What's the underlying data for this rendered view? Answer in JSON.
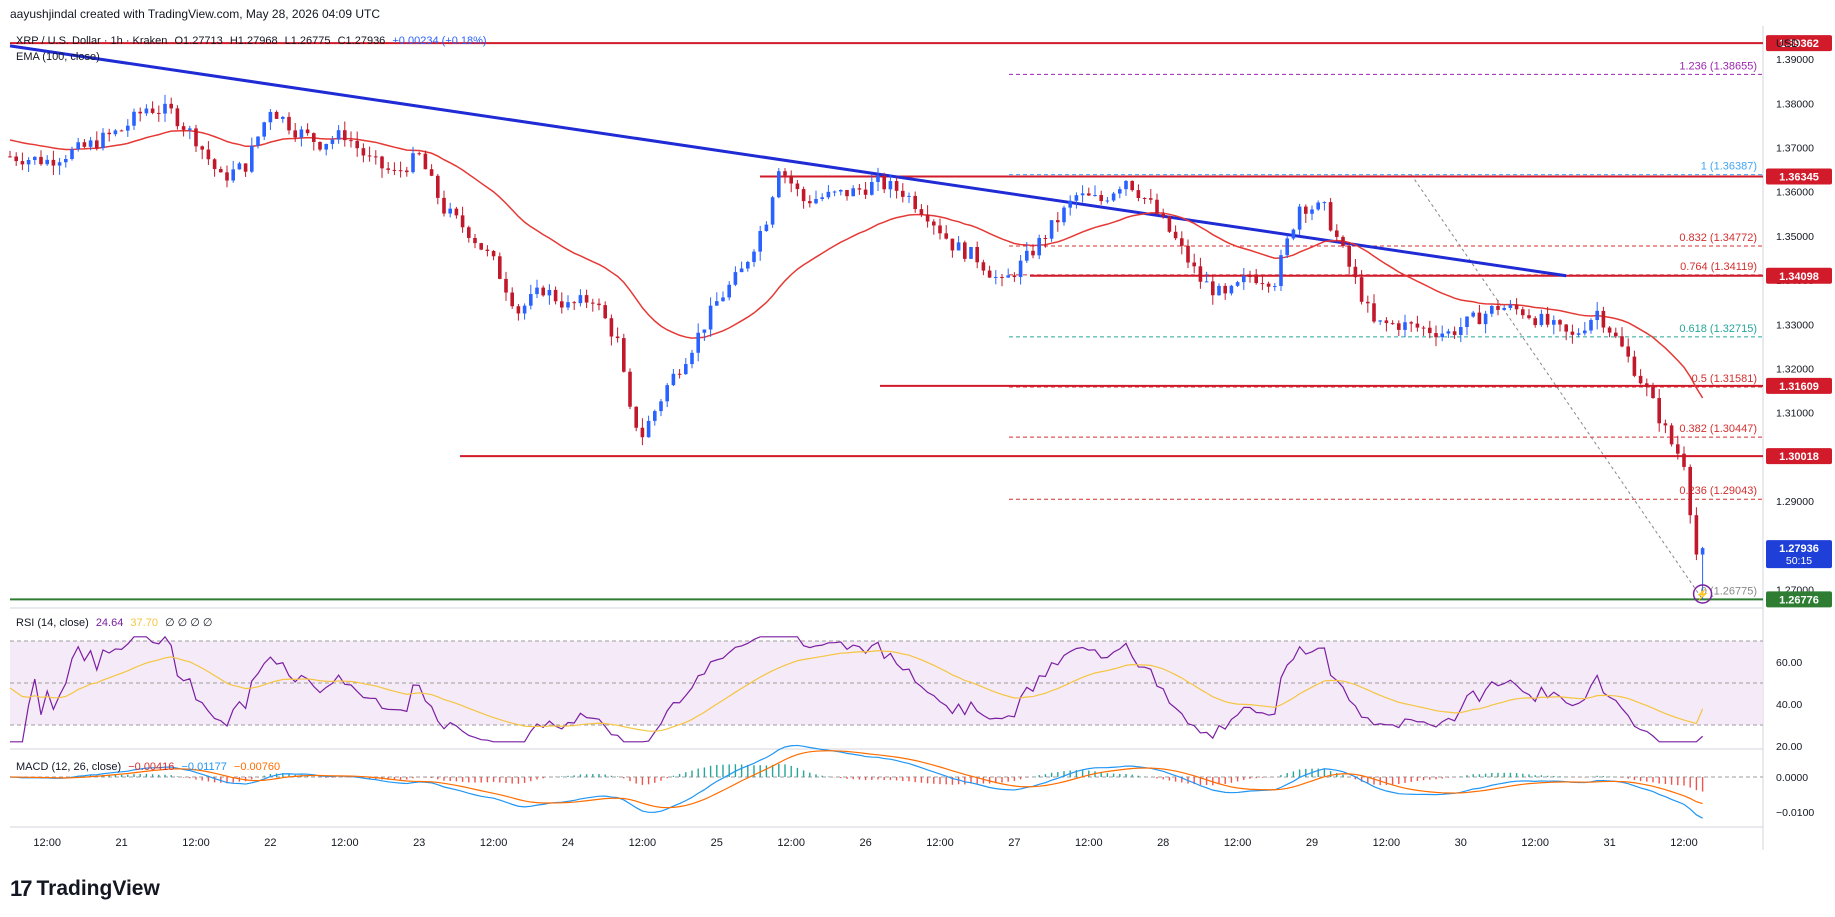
{
  "header": {
    "attribution": "aayushjindal created with TradingView.com, May 28, 2026 04:09 UTC"
  },
  "legend": {
    "symbol": "XRP / U.S. Dollar · 1h · Kraken",
    "open": "O1.27713",
    "high": "H1.27968",
    "low": "L1.26775",
    "close": "C1.27936",
    "change": "+0.00234 (+0.18%)",
    "ema": "EMA (100, close)",
    "rsi_label": "RSI (14, close)",
    "rsi_value": "24.64",
    "rsi_ma": "37.70",
    "rsi_extra": "∅ ∅ ∅ ∅",
    "macd_label": "MACD (12, 26, close)",
    "macd_hist": "−0.00416",
    "macd_line": "−0.01177",
    "macd_signal": "−0.00760"
  },
  "currency": "USD",
  "footer": {
    "brand": "TradingView",
    "logo": "tradingview-logo"
  },
  "colors": {
    "up": "#2962ff",
    "down": "#c2182b",
    "ema": "#e53935",
    "trend": "#1f2bd4",
    "horizontal": "#d11a2a",
    "support": "#2e7d32",
    "fib_red": "#d32f2f",
    "fib_green": "#26a69a",
    "fib_purple": "#9c27b0",
    "rsi": "#7b1fa2",
    "rsi_ma": "#f5c542",
    "macd_line": "#2196f3",
    "macd_signal": "#ff6d00"
  },
  "chart_data": {
    "type": "candlestick",
    "title": "XRP / U.S. Dollar · 1h · Kraken",
    "price_axis_ticks": [
      "1.39000",
      "1.38000",
      "1.37000",
      "1.36000",
      "1.35000",
      "1.34000",
      "1.33000",
      "1.32000",
      "1.31000",
      "1.30000",
      "1.29000",
      "1.28000",
      "1.27000"
    ],
    "time_axis_ticks": [
      "12:00",
      "21",
      "12:00",
      "22",
      "12:00",
      "23",
      "12:00",
      "24",
      "12:00",
      "25",
      "12:00",
      "26",
      "12:00",
      "27",
      "12:00",
      "28",
      "12:00",
      "29",
      "12:00",
      "30",
      "12:00",
      "31",
      "12:00"
    ],
    "ylim": [
      1.2665,
      1.3975
    ],
    "price_labels": [
      {
        "price": 1.39362,
        "label": "1.39362",
        "color": "#d11a2a"
      },
      {
        "price": 1.36345,
        "label": "1.36345",
        "color": "#d11a2a"
      },
      {
        "price": 1.34098,
        "label": "1.34098",
        "color": "#d11a2a"
      },
      {
        "price": 1.31609,
        "label": "1.31609",
        "color": "#d11a2a"
      },
      {
        "price": 1.30018,
        "label": "1.30018",
        "color": "#d11a2a"
      },
      {
        "price": 1.27936,
        "label": "1.27936",
        "sub": "50:15",
        "color": "#1e3fd8"
      },
      {
        "price": 1.26776,
        "label": "1.26776",
        "color": "#2e7d32"
      }
    ],
    "fib_levels": [
      {
        "ratio": "1.236",
        "price": 1.38655,
        "color": "#9c27b0"
      },
      {
        "ratio": "1",
        "price": 1.36387,
        "color": "#42a5f5"
      },
      {
        "ratio": "0.832",
        "price": 1.34772,
        "color": "#d32f2f"
      },
      {
        "ratio": "0.764",
        "price": 1.34119,
        "color": "#d32f2f"
      },
      {
        "ratio": "0.618",
        "price": 1.32715,
        "color": "#26a69a"
      },
      {
        "ratio": "0.5",
        "price": 1.31581,
        "color": "#d32f2f"
      },
      {
        "ratio": "0.382",
        "price": 1.30447,
        "color": "#d32f2f"
      },
      {
        "ratio": "0.236",
        "price": 1.29043,
        "color": "#d32f2f"
      },
      {
        "ratio": "0",
        "price": 1.26775,
        "color": "#888888"
      }
    ],
    "horizontal_levels": [
      1.39362,
      1.36345,
      1.34098,
      1.31609,
      1.30018,
      1.26776
    ],
    "trendline": {
      "from": {
        "time": "May 20 06:00",
        "price": 1.393
      },
      "to": {
        "time": "May 29 17:00",
        "price": 1.341
      }
    },
    "rsi": {
      "ticks": [
        "60.00",
        "40.00",
        "20.00"
      ],
      "upper": 70,
      "lower": 30,
      "last": 24.64,
      "ma_last": 37.7
    },
    "macd": {
      "ticks": [
        "0.0000",
        "−0.0100"
      ],
      "line_last": -0.01177,
      "signal_last": -0.0076,
      "hist_last": -0.00416
    }
  }
}
